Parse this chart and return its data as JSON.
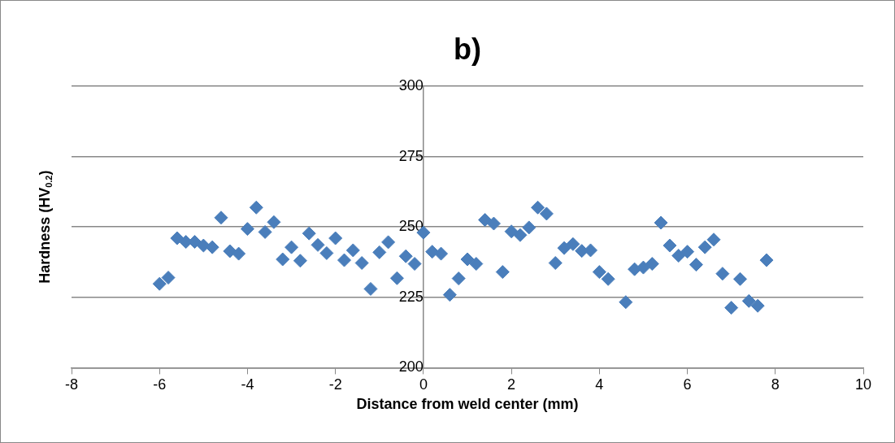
{
  "chart_data": {
    "type": "scatter",
    "title": "b)",
    "xlabel": "Distance from weld center (mm)",
    "ylabel": "Hardness (HV$_{0.2}$)",
    "x": [
      -6,
      -5.8,
      -5.6,
      -5.4,
      -5.2,
      -5,
      -4.8,
      -4.6,
      -4.4,
      -4.2,
      -4,
      -3.8,
      -3.6,
      -3.4,
      -3.2,
      -3,
      -2.8,
      -2.6,
      -2.4,
      -2.2,
      -2,
      -1.8,
      -1.6,
      -1.4,
      -1.2,
      -1,
      -0.8,
      -0.6,
      -0.4,
      -0.2,
      0,
      0.2,
      0.4,
      0.6,
      0.8,
      1,
      1.2,
      1.4,
      1.6,
      1.8,
      2,
      2.2,
      2.4,
      2.6,
      2.8,
      3,
      3.2,
      3.4,
      3.6,
      3.8,
      4,
      4.2,
      4.6,
      4.8,
      5,
      5.2,
      5.4,
      5.6,
      5.8,
      6,
      6.2,
      6.4,
      6.6,
      6.8,
      7,
      7.2,
      7.4,
      7.6,
      7.8
    ],
    "values": [
      229.8,
      232,
      246,
      244.7,
      244.7,
      243.4,
      242.8,
      253.3,
      241.4,
      240.5,
      249.3,
      256.9,
      248.2,
      251.7,
      238.5,
      242.8,
      238,
      247.7,
      243.6,
      240.7,
      246,
      238.2,
      241.7,
      237.2,
      228,
      241,
      244.6,
      231.8,
      239.6,
      236.9,
      248,
      241.2,
      240.5,
      225.9,
      231.7,
      238.5,
      236.9,
      252.5,
      251.2,
      234,
      248.4,
      247.1,
      249.8,
      256.9,
      254.7,
      237.2,
      242.5,
      243.9,
      241.5,
      241.7,
      234,
      231.5,
      223.3,
      235,
      235.6,
      236.9,
      251.5,
      243.4,
      239.8,
      241.2,
      236.6,
      242.8,
      245.5,
      233.4,
      221.3,
      231.5,
      223.7,
      222,
      238.2
    ],
    "color": "#4a7ebb",
    "marker": "diamond",
    "xlim": [
      -8,
      10
    ],
    "xticks": [
      -8,
      -6,
      -4,
      -2,
      0,
      2,
      4,
      6,
      8,
      10
    ],
    "ylim": [
      200,
      300
    ],
    "yticks": [
      200,
      225,
      250,
      275,
      300
    ],
    "grid": "y"
  }
}
